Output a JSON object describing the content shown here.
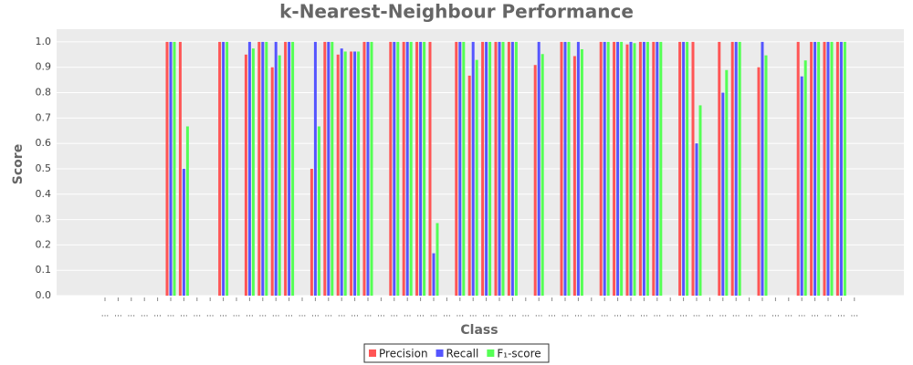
{
  "chart_data": {
    "type": "bar",
    "title": "k-Nearest-Neighbour Performance",
    "x_label": "Class",
    "y_label": "Score",
    "categories": [
      "...",
      "...",
      "...",
      "...",
      "...",
      "...",
      "...",
      "...",
      "...",
      "...",
      "...",
      "...",
      "...",
      "...",
      "...",
      "...",
      "...",
      "...",
      "...",
      "...",
      "...",
      "...",
      "...",
      "...",
      "...",
      "...",
      "...",
      "...",
      "...",
      "...",
      "...",
      "...",
      "...",
      "...",
      "...",
      "...",
      "...",
      "...",
      "...",
      "...",
      "...",
      "...",
      "...",
      "...",
      "...",
      "...",
      "...",
      "...",
      "...",
      "...",
      "...",
      "...",
      "...",
      "...",
      "...",
      "...",
      "...",
      "..."
    ],
    "series": [
      {
        "name": "Precision",
        "color": "#ff5555",
        "values": [
          null,
          null,
          null,
          null,
          null,
          1,
          1,
          null,
          null,
          1,
          null,
          0.95,
          1,
          0.9,
          1,
          null,
          0.5,
          1,
          0.95,
          0.962,
          1,
          null,
          1,
          1,
          1,
          1,
          null,
          1,
          0.867,
          1,
          1,
          1,
          null,
          0.909,
          null,
          1,
          0.944,
          null,
          1,
          1,
          0.99,
          1,
          1,
          null,
          1,
          1,
          null,
          1,
          1,
          null,
          0.9,
          null,
          null,
          1,
          1,
          1,
          1,
          null
        ]
      },
      {
        "name": "Recall",
        "color": "#5555ff",
        "values": [
          null,
          null,
          null,
          null,
          null,
          1,
          0.5,
          null,
          null,
          1,
          null,
          1,
          1,
          1,
          1,
          null,
          1,
          1,
          0.974,
          0.962,
          1,
          null,
          1,
          1,
          1,
          0.167,
          null,
          1,
          1,
          1,
          1,
          1,
          null,
          1,
          null,
          1,
          1,
          null,
          1,
          1,
          1,
          1,
          1,
          null,
          1,
          0.6,
          null,
          0.8,
          1,
          null,
          1,
          null,
          null,
          0.864,
          1,
          1,
          1,
          null
        ]
      },
      {
        "name": "F₁-score",
        "color": "#55ff55",
        "values": [
          null,
          null,
          null,
          null,
          null,
          1,
          0.667,
          null,
          null,
          1,
          null,
          0.974,
          1,
          0.947,
          1,
          null,
          0.667,
          1,
          0.962,
          0.962,
          1,
          null,
          1,
          1,
          1,
          0.286,
          null,
          1,
          0.929,
          1,
          1,
          1,
          null,
          0.952,
          null,
          1,
          0.971,
          null,
          1,
          1,
          0.995,
          1,
          1,
          null,
          1,
          0.75,
          null,
          0.889,
          1,
          null,
          0.947,
          null,
          null,
          0.927,
          1,
          1,
          1,
          null
        ]
      }
    ],
    "ylim": [
      0,
      1.05
    ],
    "yticks": [
      {
        "value": 0,
        "label": "0.0"
      },
      0.1,
      0.2,
      0.3,
      0.4,
      0.5,
      0.6,
      0.7,
      0.8,
      0.9,
      {
        "value": 1,
        "label": "1.0"
      }
    ],
    "grid": true,
    "legend": "bottom"
  }
}
